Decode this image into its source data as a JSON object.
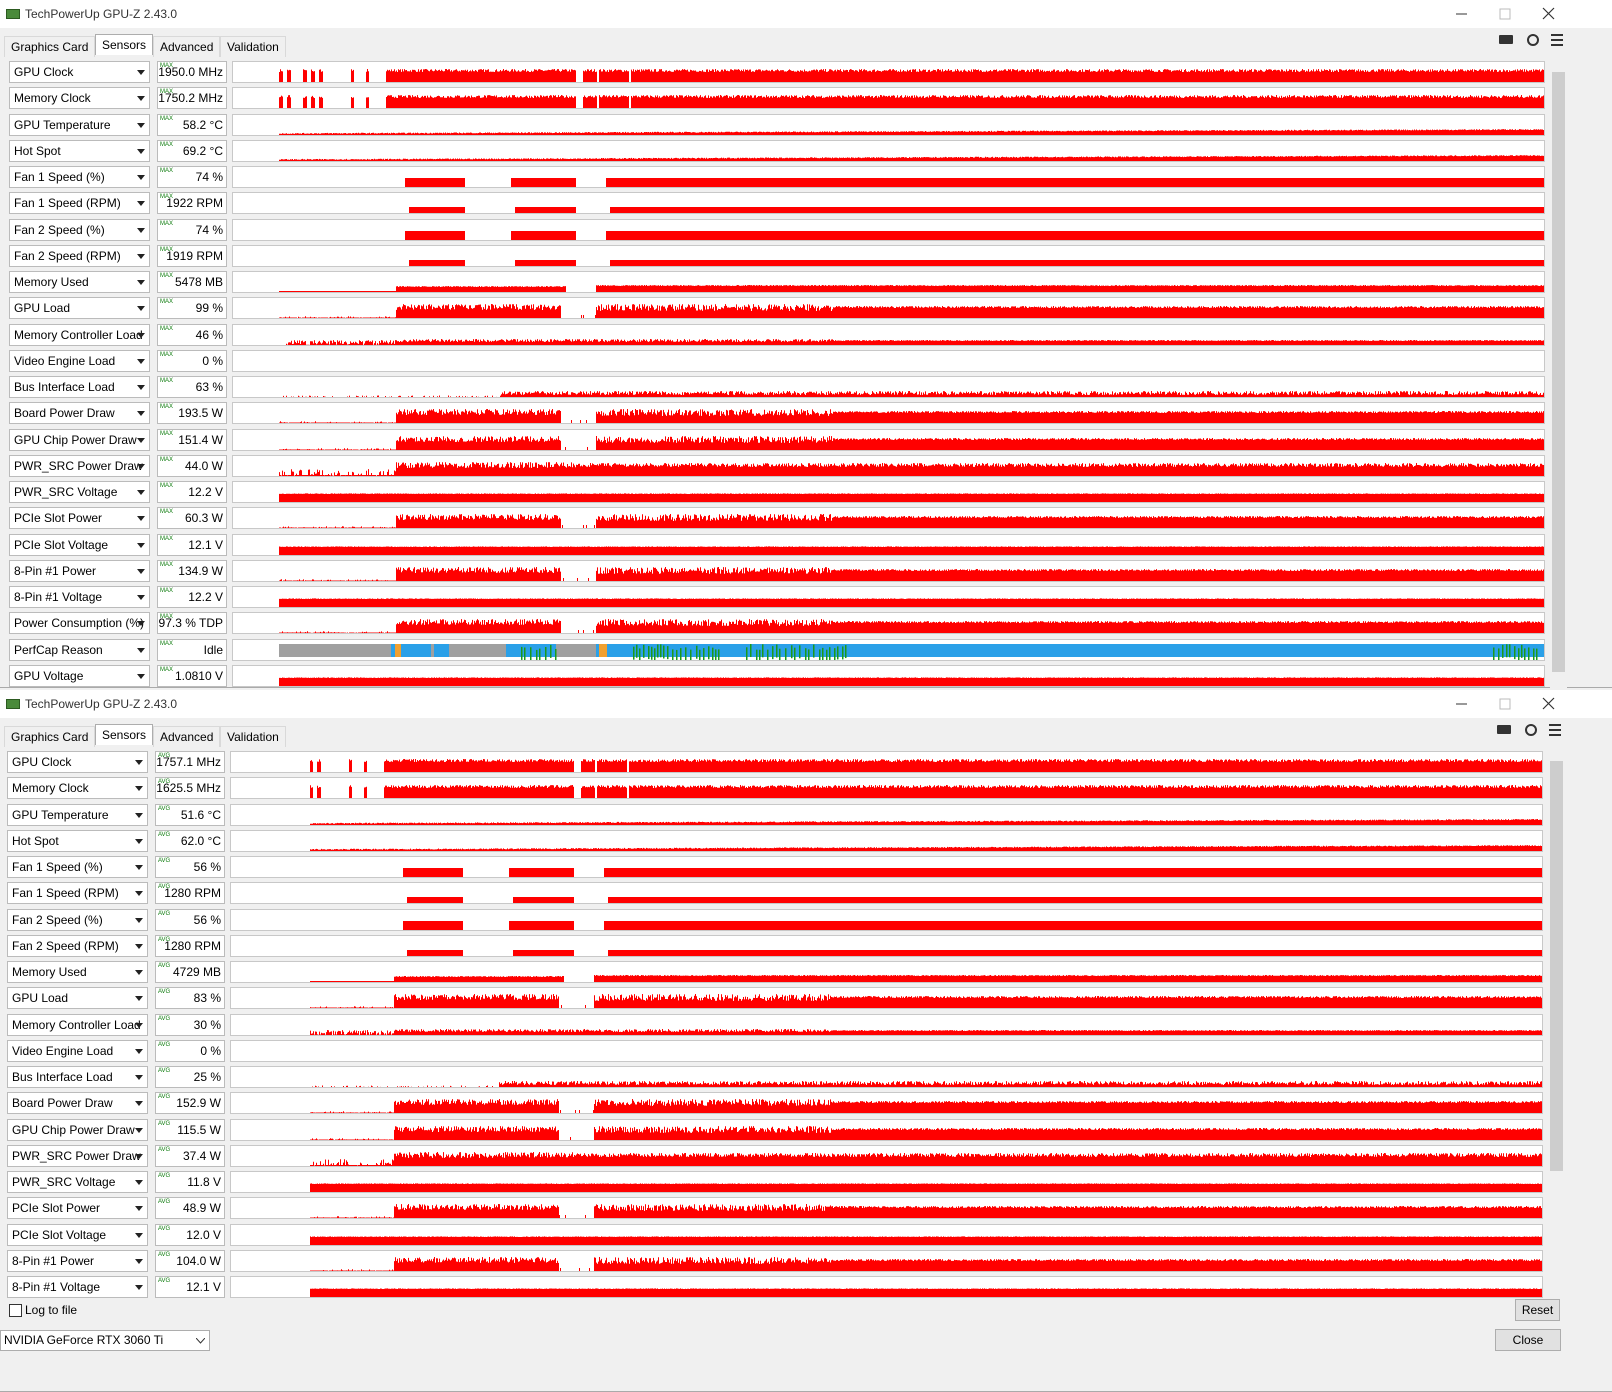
{
  "windows": [
    {
      "title": "TechPowerUp GPU-Z 2.43.0",
      "tabs": [
        "Graphics Card",
        "Sensors",
        "Advanced",
        "Validation"
      ],
      "mode": "MAX",
      "sensors": [
        {
          "name": "GPU Clock",
          "value": "1950.0 MHz"
        },
        {
          "name": "Memory Clock",
          "value": "1750.2 MHz"
        },
        {
          "name": "GPU Temperature",
          "value": "58.2 °C"
        },
        {
          "name": "Hot Spot",
          "value": "69.2 °C"
        },
        {
          "name": "Fan 1 Speed (%)",
          "value": "74 %"
        },
        {
          "name": "Fan 1 Speed (RPM)",
          "value": "1922 RPM"
        },
        {
          "name": "Fan 2 Speed (%)",
          "value": "74 %"
        },
        {
          "name": "Fan 2 Speed (RPM)",
          "value": "1919 RPM"
        },
        {
          "name": "Memory Used",
          "value": "5478 MB"
        },
        {
          "name": "GPU Load",
          "value": "99 %"
        },
        {
          "name": "Memory Controller Load",
          "value": "46 %"
        },
        {
          "name": "Video Engine Load",
          "value": "0 %"
        },
        {
          "name": "Bus Interface Load",
          "value": "63 %"
        },
        {
          "name": "Board Power Draw",
          "value": "193.5 W"
        },
        {
          "name": "GPU Chip Power Draw",
          "value": "151.4 W"
        },
        {
          "name": "PWR_SRC Power Draw",
          "value": "44.0 W"
        },
        {
          "name": "PWR_SRC Voltage",
          "value": "12.2 V"
        },
        {
          "name": "PCIe Slot Power",
          "value": "60.3 W"
        },
        {
          "name": "PCIe Slot Voltage",
          "value": "12.1 V"
        },
        {
          "name": "8-Pin #1 Power",
          "value": "134.9 W"
        },
        {
          "name": "8-Pin #1 Voltage",
          "value": "12.2 V"
        },
        {
          "name": "Power Consumption (%)",
          "value": "97.3 % TDP"
        },
        {
          "name": "PerfCap Reason",
          "value": "Idle"
        },
        {
          "name": "GPU Voltage",
          "value": "1.0810 V"
        }
      ]
    },
    {
      "title": "TechPowerUp GPU-Z 2.43.0",
      "tabs": [
        "Graphics Card",
        "Sensors",
        "Advanced",
        "Validation"
      ],
      "mode": "AVG",
      "sensors": [
        {
          "name": "GPU Clock",
          "value": "1757.1 MHz"
        },
        {
          "name": "Memory Clock",
          "value": "1625.5 MHz"
        },
        {
          "name": "GPU Temperature",
          "value": "51.6 °C"
        },
        {
          "name": "Hot Spot",
          "value": "62.0 °C"
        },
        {
          "name": "Fan 1 Speed (%)",
          "value": "56 %"
        },
        {
          "name": "Fan 1 Speed (RPM)",
          "value": "1280 RPM"
        },
        {
          "name": "Fan 2 Speed (%)",
          "value": "56 %"
        },
        {
          "name": "Fan 2 Speed (RPM)",
          "value": "1280 RPM"
        },
        {
          "name": "Memory Used",
          "value": "4729 MB"
        },
        {
          "name": "GPU Load",
          "value": "83 %"
        },
        {
          "name": "Memory Controller Load",
          "value": "30 %"
        },
        {
          "name": "Video Engine Load",
          "value": "0 %"
        },
        {
          "name": "Bus Interface Load",
          "value": "25 %"
        },
        {
          "name": "Board Power Draw",
          "value": "152.9 W"
        },
        {
          "name": "GPU Chip Power Draw",
          "value": "115.5 W"
        },
        {
          "name": "PWR_SRC Power Draw",
          "value": "37.4 W"
        },
        {
          "name": "PWR_SRC Voltage",
          "value": "11.8 V"
        },
        {
          "name": "PCIe Slot Power",
          "value": "48.9 W"
        },
        {
          "name": "PCIe Slot Voltage",
          "value": "12.0 V"
        },
        {
          "name": "8-Pin #1 Power",
          "value": "104.0 W"
        },
        {
          "name": "8-Pin #1 Voltage",
          "value": "12.1 V"
        }
      ]
    }
  ],
  "footer": {
    "log_to_file": "Log to file",
    "reset": "Reset",
    "device": "NVIDIA GeForce RTX 3060 Ti",
    "close": "Close"
  }
}
